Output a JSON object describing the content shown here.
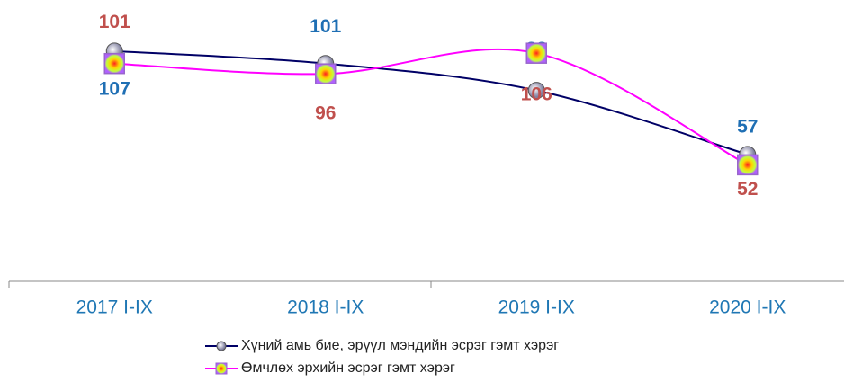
{
  "chart_data": {
    "type": "line",
    "categories": [
      "2017 I-IX",
      "2018 I-IX",
      "2019 I-IX",
      "2020 I-IX"
    ],
    "series": [
      {
        "name": "Хүний амь бие, эрүүл мэндийн эсрэг гэмт хэрэг",
        "color": "#000066",
        "label_color": "#1f6fb4",
        "values": [
          107,
          101,
          88,
          57
        ]
      },
      {
        "name": "Өмчлөх эрхийн эсрэг гэмт хэрэг",
        "color": "#ff00ff",
        "label_color": "#c0504d",
        "values": [
          101,
          96,
          106,
          52
        ]
      }
    ],
    "ylim": [
      0,
      130
    ]
  }
}
